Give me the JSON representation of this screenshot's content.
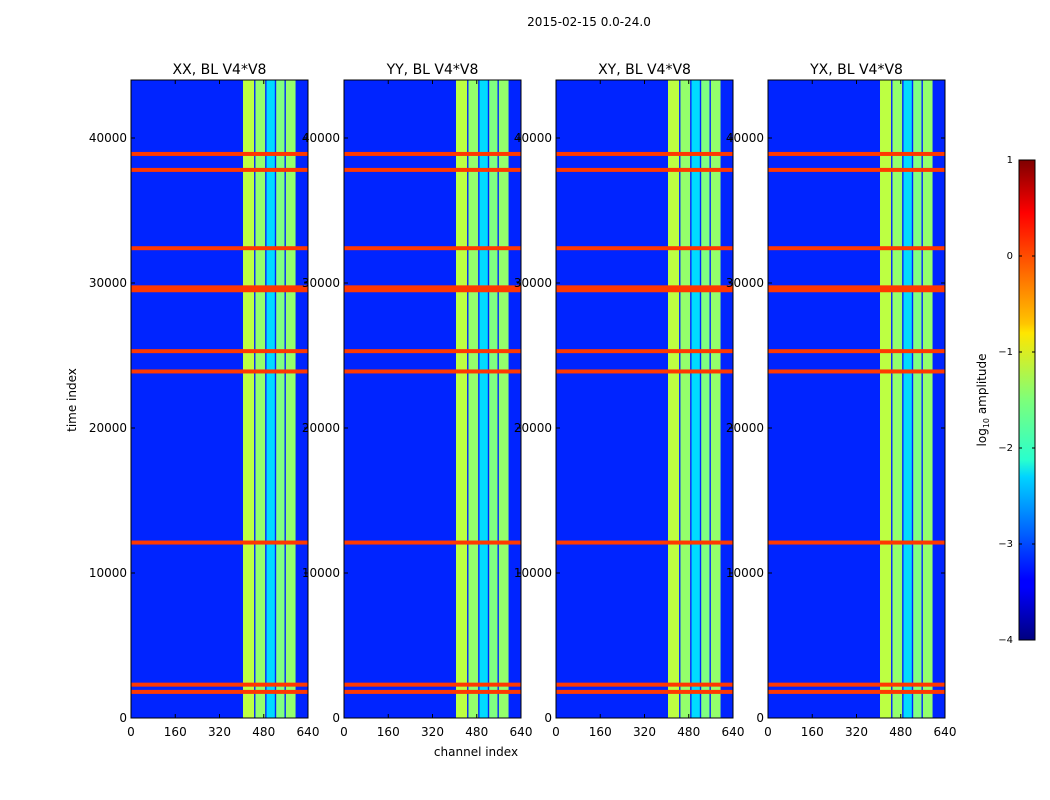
{
  "figure_title": "2015-02-15 0.0-24.0",
  "colorbar": {
    "label_main": "log",
    "label_sub": "10",
    "label_rest": " amplitude",
    "range": [
      -4,
      1
    ],
    "ticks": [
      "1",
      "0",
      "−1",
      "−2",
      "−3",
      "−4"
    ],
    "tick_values": [
      1,
      0,
      -1,
      -2,
      -3,
      -4
    ],
    "colormap": "jet"
  },
  "chart_data": {
    "type": "heatmap",
    "xlabel": "channel index",
    "ylabel": "time index",
    "xlim": [
      0,
      640
    ],
    "ylim": [
      0,
      44000
    ],
    "x_ticks": [
      "0",
      "160",
      "320",
      "480",
      "640"
    ],
    "x_tick_values": [
      0,
      160,
      320,
      480,
      640
    ],
    "y_ticks": [
      "0",
      "10000",
      "20000",
      "30000",
      "40000"
    ],
    "y_tick_values": [
      0,
      10000,
      20000,
      30000,
      40000
    ],
    "background_log10_amplitude": -3.2,
    "bright_channel_bands": [
      {
        "start": 405,
        "end": 445,
        "log10_amplitude": -1.2
      },
      {
        "start": 450,
        "end": 485,
        "log10_amplitude": -1.4
      },
      {
        "start": 490,
        "end": 520,
        "log10_amplitude": -2.3
      },
      {
        "start": 525,
        "end": 555,
        "log10_amplitude": -1.5
      },
      {
        "start": 560,
        "end": 595,
        "log10_amplitude": -1.4
      }
    ],
    "flagged_time_rows": [
      1800,
      2300,
      12100,
      23900,
      25300,
      29500,
      29700,
      32400,
      37800,
      38900
    ],
    "panels": [
      {
        "title": "XX, BL V4*V8"
      },
      {
        "title": "YY, BL V4*V8"
      },
      {
        "title": "XY, BL V4*V8"
      },
      {
        "title": "YX, BL V4*V8"
      }
    ]
  }
}
